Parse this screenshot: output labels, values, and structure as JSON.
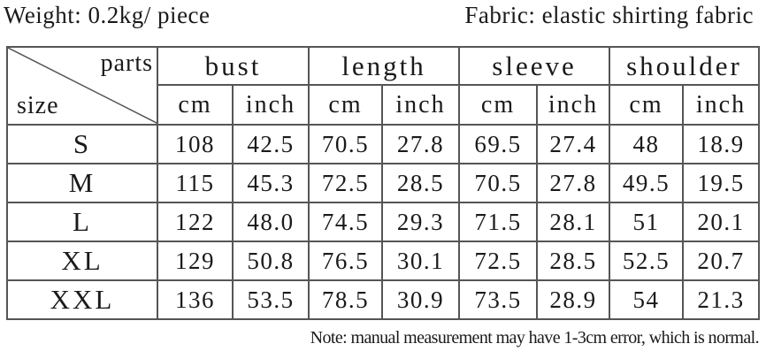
{
  "header": {
    "weight": "Weight: 0.2kg/ piece",
    "fabric": "Fabric: elastic shirting fabric"
  },
  "table": {
    "corner_top": "parts",
    "corner_bottom": "size",
    "parts": [
      "bust",
      "length",
      "sleeve",
      "shoulder"
    ],
    "units": [
      "cm",
      "inch",
      "cm",
      "inch",
      "cm",
      "inch",
      "cm",
      "inch"
    ],
    "rows": [
      {
        "size": "S",
        "values": [
          "108",
          "42.5",
          "70.5",
          "27.8",
          "69.5",
          "27.4",
          "48",
          "18.9"
        ]
      },
      {
        "size": "M",
        "values": [
          "115",
          "45.3",
          "72.5",
          "28.5",
          "70.5",
          "27.8",
          "49.5",
          "19.5"
        ]
      },
      {
        "size": "L",
        "values": [
          "122",
          "48.0",
          "74.5",
          "29.3",
          "71.5",
          "28.1",
          "51",
          "20.1"
        ]
      },
      {
        "size": "XL",
        "values": [
          "129",
          "50.8",
          "76.5",
          "30.1",
          "72.5",
          "28.5",
          "52.5",
          "20.7"
        ]
      },
      {
        "size": "XXL",
        "values": [
          "136",
          "53.5",
          "78.5",
          "30.9",
          "73.5",
          "28.9",
          "54",
          "21.3"
        ]
      }
    ]
  },
  "note": "Note: manual measurement may have 1-3cm error, which is normal."
}
